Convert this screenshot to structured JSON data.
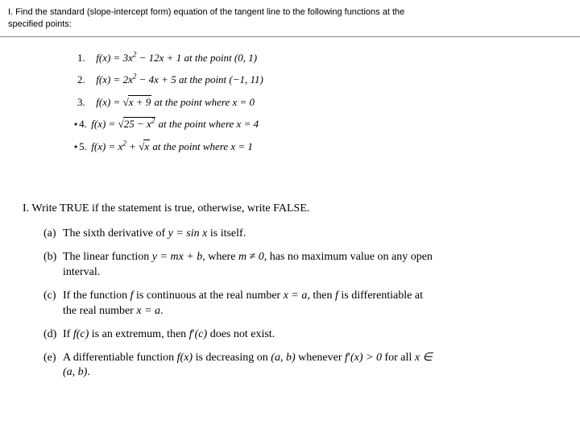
{
  "header": {
    "line1": "I. Find the standard (slope-intercept form) equation of the tangent line to the following functions at the",
    "line2": "specified points:"
  },
  "problems": {
    "p1": {
      "label": "1.",
      "func": "f(x) = 3x",
      "exp1": "2",
      "mid": " − 12x + 1 at the point (0, 1)"
    },
    "p2": {
      "label": "2.",
      "func": "f(x) = 2x",
      "exp1": "2",
      "mid": " − 4x + 5 at the point (−1, 11)"
    },
    "p3": {
      "label": "3.",
      "func": "f(x) = ",
      "sqrt": "x + 9",
      "mid": " at the point where x = 0"
    },
    "p4": {
      "label": "⋆4.",
      "func": "f(x) = ",
      "sqrt": "25 − x",
      "exp1": "2",
      "mid": " at the point where x = 4"
    },
    "p5": {
      "label": "⋆5.",
      "func": "f(x) = x",
      "exp1": "2",
      "plus": " + ",
      "sqrt": "x",
      "mid": " at the point where x = 1"
    }
  },
  "section2": {
    "title": "I. Write TRUE if the statement is true, otherwise, write FALSE.",
    "a": {
      "label": "(a)",
      "text1": "The sixth derivative of ",
      "eq": "y = sin x",
      "text2": " is itself."
    },
    "b": {
      "label": "(b)",
      "text1": "The linear function ",
      "eq": "y = mx + b",
      "text2": ", where ",
      "eq2": "m ≠ 0",
      "text3": ", has no maximum value on any open",
      "cont": "interval."
    },
    "c": {
      "label": "(c)",
      "text1": "If the function ",
      "eq": "f",
      "text2": " is continuous at the real number ",
      "eq2": "x = a",
      "text3": ", then ",
      "eq3": "f",
      "text4": " is differentiable at",
      "cont1": "the real number ",
      "conteq": "x = a",
      "cont2": "."
    },
    "d": {
      "label": "(d)",
      "text1": "If ",
      "eq": "f(c)",
      "text2": " is an extremum, then ",
      "eq2": "f",
      "prime": "′",
      "eq3": "(c)",
      "text3": " does not exist."
    },
    "e": {
      "label": "(e)",
      "text1": "A differentiable function ",
      "eq": "f(x)",
      "text2": " is decreasing on ",
      "eq2": "(a, b)",
      "text3": " whenever ",
      "eq3": "f",
      "prime": "′",
      "eq4": "(x) > 0",
      "text4": " for all ",
      "eq5": "x ∈",
      "cont": "(a, b)",
      "cont2": "."
    }
  }
}
